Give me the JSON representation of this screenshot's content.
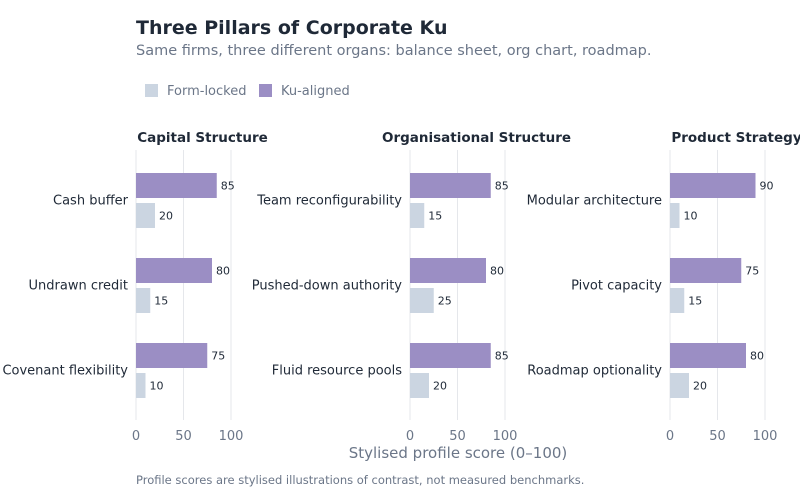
{
  "title": "Three Pillars of Corporate Ku",
  "subtitle": "Same firms, three different organs: balance sheet, org chart, roadmap.",
  "note": "Profile scores are stylised illustrations of contrast, not measured benchmarks.",
  "colors": {
    "form_locked": "#cbd5e1",
    "ku_aligned": "#9b8ec4"
  },
  "chart_data": {
    "type": "bar",
    "orientation": "horizontal",
    "xlabel": "Stylised profile score (0–100)",
    "xlim": [
      0,
      100
    ],
    "xticks": [
      "0",
      "50",
      "100"
    ],
    "grid": true,
    "legend_position": "top-left",
    "legend": [
      {
        "name": "Form-locked",
        "color": "#cbd5e1"
      },
      {
        "name": "Ku-aligned",
        "color": "#9b8ec4"
      }
    ],
    "panels": [
      {
        "title": "Capital Structure",
        "categories": [
          "Cash buffer",
          "Undrawn credit",
          "Covenant flexibility"
        ],
        "series": [
          {
            "name": "Ku-aligned",
            "values": [
              85,
              80,
              75
            ]
          },
          {
            "name": "Form-locked",
            "values": [
              20,
              15,
              10
            ]
          }
        ]
      },
      {
        "title": "Organisational Structure",
        "categories": [
          "Team reconfigurability",
          "Pushed-down authority",
          "Fluid resource pools"
        ],
        "series": [
          {
            "name": "Ku-aligned",
            "values": [
              85,
              80,
              85
            ]
          },
          {
            "name": "Form-locked",
            "values": [
              15,
              25,
              20
            ]
          }
        ]
      },
      {
        "title": "Product Strategy",
        "categories": [
          "Modular architecture",
          "Pivot capacity",
          "Roadmap optionality"
        ],
        "series": [
          {
            "name": "Ku-aligned",
            "values": [
              90,
              75,
              80
            ]
          },
          {
            "name": "Form-locked",
            "values": [
              10,
              15,
              20
            ]
          }
        ]
      }
    ]
  }
}
